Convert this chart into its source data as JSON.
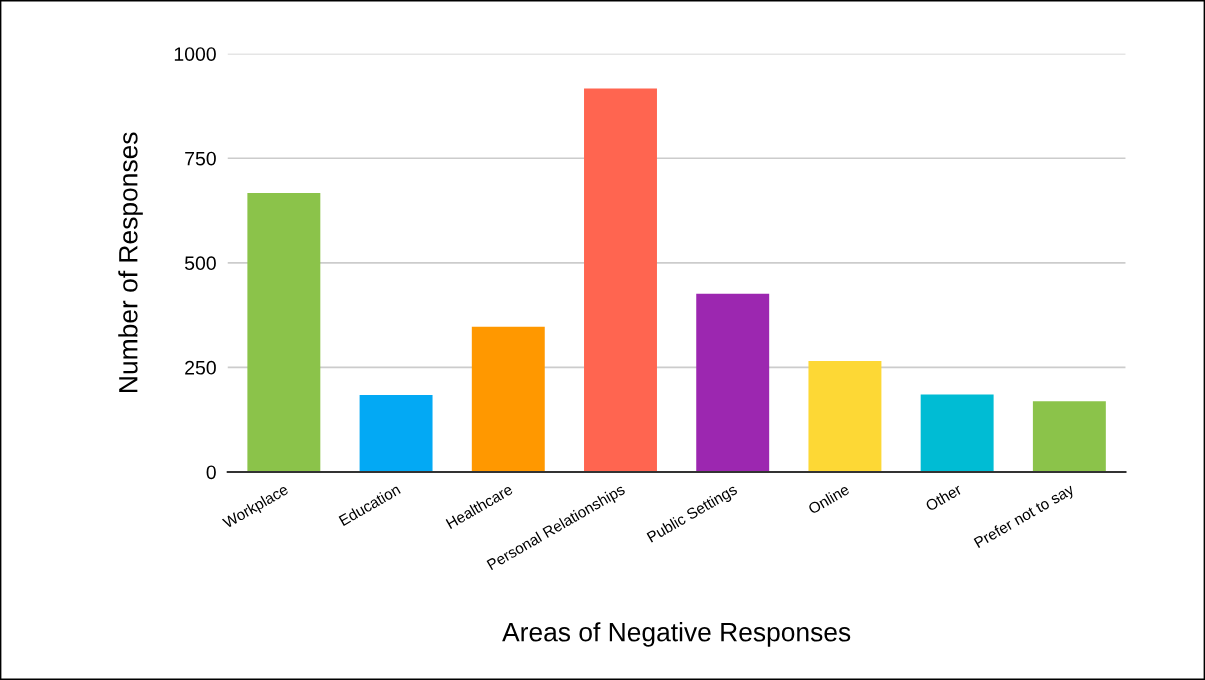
{
  "chart_data": {
    "type": "bar",
    "xlabel": "Areas of Negative Responses",
    "ylabel": "Number of Responses",
    "categories": [
      "Workplace",
      "Education",
      "Healthcare",
      "Personal Relationships",
      "Public Settings",
      "Online",
      "Other",
      "Prefer not to say"
    ],
    "values": [
      667,
      184,
      347,
      917,
      426,
      265,
      185,
      169
    ],
    "colors": [
      "#8bc34a",
      "#03a9f4",
      "#ff9800",
      "#ff6550",
      "#9c27b0",
      "#fdd835",
      "#00bcd4",
      "#8bc34a"
    ],
    "ylim": [
      0,
      1000
    ],
    "yticks": [
      0,
      250,
      500,
      750,
      1000
    ],
    "grid": "y",
    "legend": false
  }
}
